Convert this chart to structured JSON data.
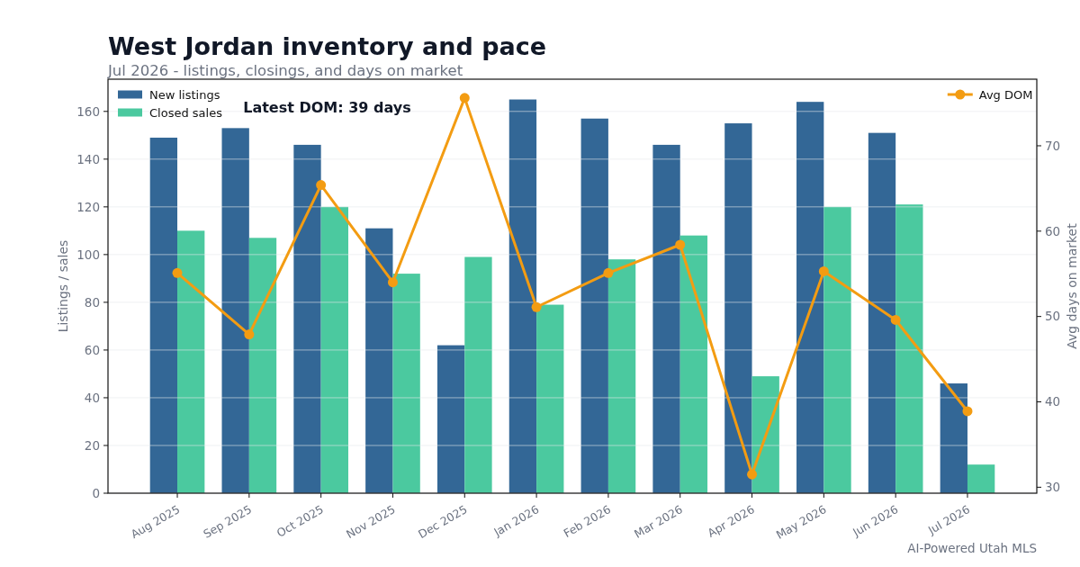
{
  "chart_data": {
    "type": "bar",
    "title": "West Jordan inventory and pace",
    "subtitle": "Jul 2026 - listings, closings, and days on market",
    "ylabel": "Listings / sales",
    "y2label": "Avg days on market",
    "categories": [
      "Aug 2025",
      "Sep 2025",
      "Oct 2025",
      "Nov 2025",
      "Dec 2025",
      "Jan 2026",
      "Feb 2026",
      "Mar 2026",
      "Apr 2026",
      "May 2026",
      "Jun 2026",
      "Jul 2026"
    ],
    "series": [
      {
        "name": "New listings",
        "color": "#336796",
        "values": [
          149,
          153,
          146,
          111,
          62,
          165,
          157,
          146,
          155,
          164,
          151,
          46
        ]
      },
      {
        "name": "Closed sales",
        "color": "#4bc99f",
        "values": [
          110,
          107,
          120,
          92,
          99,
          79,
          98,
          108,
          49,
          120,
          121,
          12
        ]
      },
      {
        "name": "Avg DOM",
        "type": "line",
        "axis": "y2",
        "color": "#f39c12",
        "values": [
          55.1,
          47.9,
          65.4,
          54.0,
          75.6,
          51.1,
          55.1,
          58.4,
          31.5,
          55.3,
          49.6,
          38.9
        ]
      }
    ],
    "ylim": [
      0,
      173.5
    ],
    "yticks": [
      0,
      20,
      40,
      60,
      80,
      100,
      120,
      140,
      160
    ],
    "y2lim": [
      29.3,
      77.8
    ],
    "y2ticks": [
      30,
      40,
      50,
      60,
      70
    ],
    "grid": "y",
    "legend": "top left",
    "marker": "circle",
    "line_style": "solid",
    "annotations": [
      "Latest DOM: 39 days",
      "AI-Powered Utah MLS"
    ]
  }
}
